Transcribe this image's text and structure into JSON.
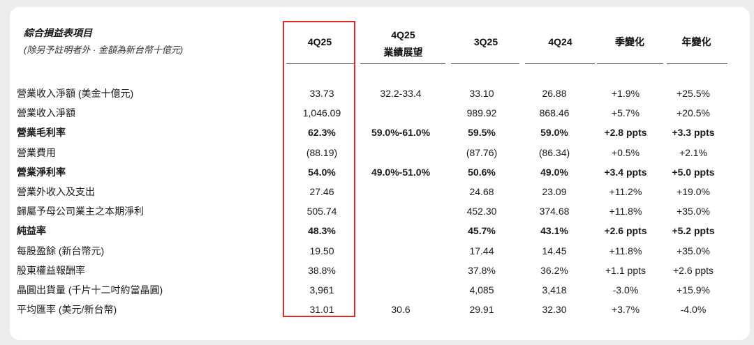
{
  "header": {
    "title": "綜合損益表項目",
    "subtitle": "(除另予註明者外 · 金額為新台幣十億元)"
  },
  "columns": [
    {
      "line1": "",
      "line2": "4Q25"
    },
    {
      "line1": "4Q25",
      "line2": "業績展望"
    },
    {
      "line1": "",
      "line2": "3Q25"
    },
    {
      "line1": "",
      "line2": "4Q24"
    },
    {
      "line1": "",
      "line2": "季變化"
    },
    {
      "line1": "",
      "line2": "年變化"
    }
  ],
  "rows": [
    {
      "label": "營業收入淨額 (美金十億元)",
      "bold": false,
      "values": [
        "33.73",
        "32.2-33.4",
        "33.10",
        "26.88",
        "+1.9%",
        "+25.5%"
      ]
    },
    {
      "label": "營業收入淨額",
      "bold": false,
      "values": [
        "1,046.09",
        "",
        "989.92",
        "868.46",
        "+5.7%",
        "+20.5%"
      ]
    },
    {
      "label": "營業毛利率",
      "bold": true,
      "values": [
        "62.3%",
        "59.0%-61.0%",
        "59.5%",
        "59.0%",
        "+2.8 ppts",
        "+3.3 ppts"
      ]
    },
    {
      "label": "營業費用",
      "bold": false,
      "values": [
        "(88.19)",
        "",
        "(87.76)",
        "(86.34)",
        "+0.5%",
        "+2.1%"
      ]
    },
    {
      "label": "營業淨利率",
      "bold": true,
      "values": [
        "54.0%",
        "49.0%-51.0%",
        "50.6%",
        "49.0%",
        "+3.4 ppts",
        "+5.0 ppts"
      ]
    },
    {
      "label": "營業外收入及支出",
      "bold": false,
      "values": [
        "27.46",
        "",
        "24.68",
        "23.09",
        "+11.2%",
        "+19.0%"
      ]
    },
    {
      "label": "歸屬予母公司業主之本期淨利",
      "bold": false,
      "values": [
        "505.74",
        "",
        "452.30",
        "374.68",
        "+11.8%",
        "+35.0%"
      ]
    },
    {
      "label": "純益率",
      "bold": true,
      "values": [
        "48.3%",
        "",
        "45.7%",
        "43.1%",
        "+2.6 ppts",
        "+5.2 ppts"
      ]
    },
    {
      "label": "每股盈餘 (新台幣元)",
      "bold": false,
      "values": [
        "19.50",
        "",
        "17.44",
        "14.45",
        "+11.8%",
        "+35.0%"
      ]
    },
    {
      "label": "股東權益報酬率",
      "bold": false,
      "values": [
        "38.8%",
        "",
        "37.8%",
        "36.2%",
        "+1.1 ppts",
        "+2.6 ppts"
      ]
    },
    {
      "label": "晶圓出貨量 (千片十二吋約當晶圓)",
      "bold": false,
      "values": [
        "3,961",
        "",
        "4,085",
        "3,418",
        "-3.0%",
        "+15.9%"
      ]
    },
    {
      "label": "平均匯率 (美元/新台幣)",
      "bold": false,
      "values": [
        "31.01",
        "30.6",
        "29.91",
        "32.30",
        "+3.7%",
        "-4.0%"
      ]
    }
  ],
  "highlight_color": "#e02a2a"
}
